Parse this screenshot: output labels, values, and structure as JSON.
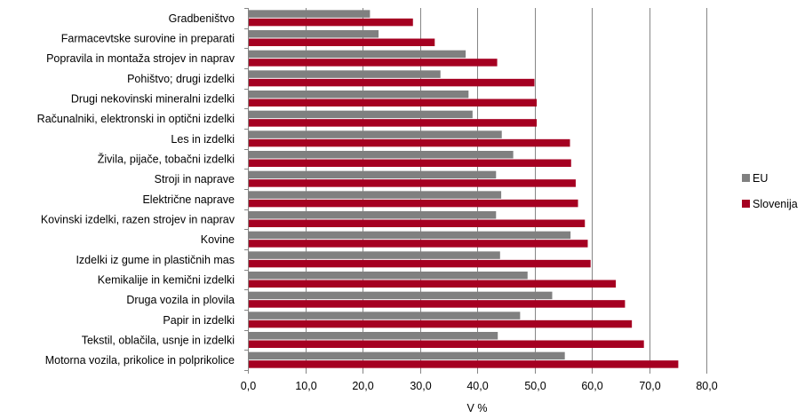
{
  "chart_data": {
    "type": "bar",
    "orientation": "horizontal",
    "xlabel": "V %",
    "ylabel": "",
    "xlim": [
      0,
      80
    ],
    "x_ticks": [
      "0,0",
      "10,0",
      "20,0",
      "30,0",
      "40,0",
      "50,0",
      "60,0",
      "70,0",
      "80,0"
    ],
    "grid": "vertical",
    "legend_position": "right",
    "categories": [
      "Gradbeništvo",
      "Farmacevtske surovine in preparati",
      "Popravila in montaža strojev in naprav",
      "Pohištvo; drugi izdelki",
      "Drugi nekovinski mineralni izdelki",
      "Računalniki, elektronski in optični izdelki",
      "Les in izdelki",
      "Živila, pijače, tobačni izdelki",
      "Stroji in naprave",
      "Električne naprave",
      "Kovinski izdelki, razen strojev in naprav",
      "Kovine",
      "Izdelki iz gume in plastičnih mas",
      "Kemikalije in kemični izdelki",
      "Druga vozila in plovila",
      "Papir in izdelki",
      "Tekstil, oblačila, usnje in izdelki",
      "Motorna vozila, prikolice in polprikolice"
    ],
    "series": [
      {
        "name": "EU",
        "color": "#808080",
        "values": [
          21.3,
          22.8,
          38.0,
          33.6,
          38.5,
          39.2,
          44.3,
          46.3,
          43.3,
          44.2,
          43.3,
          56.3,
          44.0,
          48.8,
          53.1,
          47.5,
          43.6,
          55.3
        ]
      },
      {
        "name": "Slovenija",
        "color": "#a50021",
        "values": [
          28.8,
          32.6,
          43.5,
          50.0,
          50.4,
          50.4,
          56.2,
          56.4,
          57.2,
          57.6,
          58.8,
          59.3,
          59.8,
          64.2,
          65.8,
          67.0,
          69.1,
          75.1
        ]
      }
    ]
  }
}
